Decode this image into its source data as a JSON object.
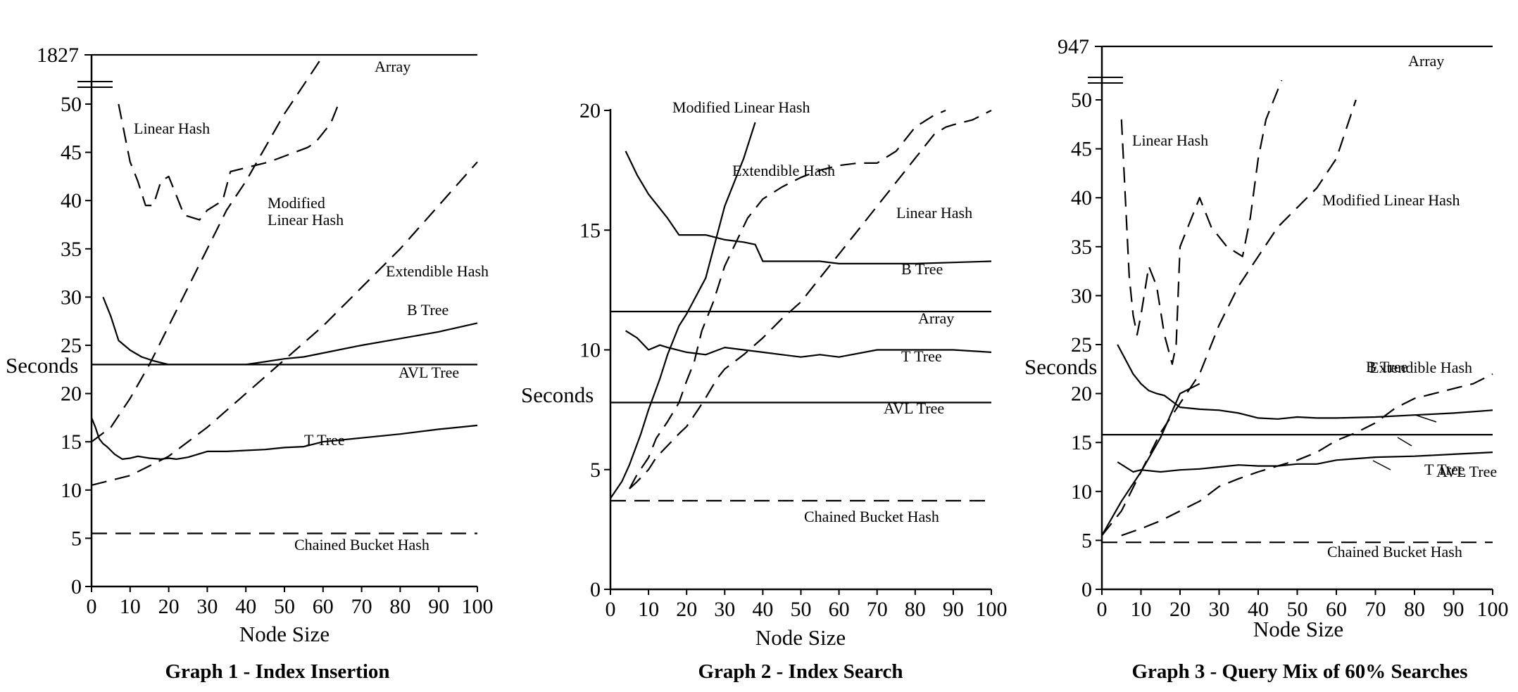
{
  "chart_data": [
    {
      "type": "line",
      "title": "Graph 1 - Index Insertion",
      "xlabel": "Node Size",
      "ylabel": "Seconds",
      "xlim": [
        0,
        100
      ],
      "ylim": [
        0,
        50
      ],
      "xticks": [
        "0",
        "10",
        "20",
        "30",
        "40",
        "50",
        "60",
        "70",
        "80",
        "90",
        "100"
      ],
      "yticks": [
        "0",
        "5",
        "10",
        "15",
        "20",
        "25",
        "30",
        "35",
        "40",
        "45",
        "50"
      ],
      "break_label": "1827",
      "grid": false,
      "series": [
        {
          "name": "Array",
          "style": "solid",
          "above_break": true,
          "break_value": 1827,
          "x": [
            0,
            100
          ]
        },
        {
          "name": "Linear Hash",
          "style": "dashed",
          "x": [
            7,
            9,
            10,
            12,
            14,
            16,
            18,
            20,
            22,
            24,
            28,
            30,
            34,
            36,
            46,
            56,
            58,
            62,
            64
          ],
          "y": [
            50,
            46,
            44,
            42,
            39.5,
            39.5,
            42,
            42.5,
            40.5,
            38.5,
            38,
            39,
            40,
            43,
            44,
            45.5,
            46,
            48,
            50
          ]
        },
        {
          "name": "Modified Linear Hash",
          "style": "dashed",
          "x": [
            0,
            5,
            10,
            15,
            20,
            25,
            30,
            35,
            40,
            45,
            50,
            55,
            60
          ],
          "y": [
            15,
            16.5,
            19.5,
            23,
            27,
            31,
            35,
            39,
            42,
            45.5,
            49,
            52,
            55
          ]
        },
        {
          "name": "Extendible Hash",
          "style": "dashed",
          "x": [
            0,
            10,
            20,
            30,
            40,
            50,
            60,
            70,
            80,
            90,
            100
          ],
          "y": [
            10.5,
            11.5,
            13.5,
            16.5,
            20,
            23.5,
            27,
            31,
            35,
            39.5,
            44
          ]
        },
        {
          "name": "B Tree",
          "style": "solid",
          "x": [
            3,
            5,
            7,
            10,
            13,
            16,
            20,
            25,
            30,
            35,
            40,
            45,
            50,
            55,
            60,
            70,
            80,
            90,
            100
          ],
          "y": [
            30,
            28,
            25.5,
            24.5,
            23.8,
            23.4,
            23,
            23,
            23,
            23,
            23,
            23.3,
            23.6,
            23.8,
            24.2,
            25,
            25.7,
            26.4,
            27.3
          ]
        },
        {
          "name": "AVL Tree",
          "style": "solid",
          "x": [
            0,
            100
          ],
          "y": [
            23,
            23
          ]
        },
        {
          "name": "T Tree",
          "style": "solid",
          "x": [
            0,
            1,
            2,
            3,
            4,
            6,
            8,
            10,
            12,
            15,
            18,
            20,
            22,
            25,
            30,
            35,
            40,
            45,
            50,
            55,
            60,
            70,
            80,
            90,
            100
          ],
          "y": [
            17.5,
            16.5,
            15.3,
            14.8,
            14.5,
            13.7,
            13.2,
            13.3,
            13.5,
            13.3,
            13.2,
            13.3,
            13.2,
            13.4,
            14,
            14,
            14.1,
            14.2,
            14.4,
            14.5,
            15,
            15.4,
            15.8,
            16.3,
            16.7
          ]
        },
        {
          "name": "Chained Bucket Hash",
          "style": "dashed",
          "x": [
            0,
            100
          ],
          "y": [
            5.5,
            5.5
          ]
        }
      ]
    },
    {
      "type": "line",
      "title": "Graph 2 - Index Search",
      "xlabel": "Node Size",
      "ylabel": "Seconds",
      "xlim": [
        0,
        100
      ],
      "ylim": [
        0,
        20
      ],
      "xticks": [
        "0",
        "10",
        "20",
        "30",
        "40",
        "50",
        "60",
        "70",
        "80",
        "90",
        "100"
      ],
      "yticks": [
        "0",
        "5",
        "10",
        "15",
        "20"
      ],
      "grid": false,
      "series": [
        {
          "name": "Modified Linear Hash",
          "style": "solid",
          "x": [
            0,
            3,
            5,
            8,
            10,
            13,
            15,
            18,
            20,
            25,
            30,
            35,
            38
          ],
          "y": [
            3.8,
            4.5,
            5.2,
            6.5,
            7.5,
            8.8,
            9.8,
            11,
            11.5,
            13,
            16,
            18,
            19.5
          ]
        },
        {
          "name": "Extendible Hash",
          "style": "dashed",
          "x": [
            5,
            7,
            10,
            12,
            15,
            18,
            20,
            22,
            24,
            27,
            30,
            33,
            36,
            40,
            45,
            50,
            55,
            60,
            65,
            70,
            75,
            80,
            85,
            88
          ],
          "y": [
            4.2,
            4.8,
            5.5,
            6.3,
            7,
            7.8,
            8.7,
            9.5,
            10.8,
            12,
            13.5,
            14.5,
            15.5,
            16.3,
            16.8,
            17.2,
            17.5,
            17.7,
            17.8,
            17.8,
            18.3,
            19.3,
            19.8,
            20
          ]
        },
        {
          "name": "Linear Hash",
          "style": "dashed",
          "x": [
            5,
            7,
            10,
            12,
            15,
            18,
            20,
            23,
            25,
            28,
            30,
            35,
            40,
            45,
            50,
            55,
            60,
            65,
            70,
            75,
            80,
            85,
            88,
            90,
            95,
            100
          ],
          "y": [
            4.2,
            4.5,
            5,
            5.5,
            6,
            6.5,
            6.8,
            7.5,
            8,
            8.8,
            9.2,
            9.8,
            10.5,
            11.3,
            12,
            13,
            14,
            15,
            16,
            17,
            18,
            19,
            19.3,
            19.4,
            19.6,
            20
          ]
        },
        {
          "name": "B Tree",
          "style": "solid",
          "x": [
            4,
            7,
            10,
            15,
            18,
            20,
            25,
            30,
            35,
            38,
            40,
            45,
            50,
            55,
            60,
            70,
            80,
            90,
            100
          ],
          "y": [
            18.3,
            17.3,
            16.5,
            15.5,
            14.8,
            14.8,
            14.8,
            14.6,
            14.5,
            14.4,
            13.7,
            13.7,
            13.7,
            13.7,
            13.6,
            13.6,
            13.6,
            13.65,
            13.7
          ]
        },
        {
          "name": "Array",
          "style": "solid",
          "x": [
            0,
            100
          ],
          "y": [
            11.6,
            11.6
          ]
        },
        {
          "name": "T Tree",
          "style": "solid",
          "x": [
            4,
            7,
            10,
            13,
            15,
            20,
            25,
            30,
            35,
            40,
            45,
            50,
            55,
            60,
            70,
            80,
            90,
            100
          ],
          "y": [
            10.8,
            10.5,
            10,
            10.2,
            10.1,
            9.9,
            9.8,
            10.1,
            10,
            9.9,
            9.8,
            9.7,
            9.8,
            9.7,
            10,
            10,
            10,
            9.9
          ]
        },
        {
          "name": "AVL Tree",
          "style": "solid",
          "x": [
            0,
            100
          ],
          "y": [
            7.8,
            7.8
          ]
        },
        {
          "name": "Chained Bucket Hash",
          "style": "dashed",
          "x": [
            0,
            100
          ],
          "y": [
            3.7,
            3.7
          ]
        }
      ]
    },
    {
      "type": "line",
      "title": "Graph 3 - Query Mix of 60% Searches",
      "xlabel": "Node Size",
      "ylabel": "Seconds",
      "xlim": [
        0,
        100
      ],
      "ylim": [
        0,
        50
      ],
      "xticks": [
        "0",
        "10",
        "20",
        "30",
        "40",
        "50",
        "60",
        "70",
        "80",
        "90",
        "100"
      ],
      "yticks": [
        "0",
        "5",
        "10",
        "15",
        "20",
        "25",
        "30",
        "35",
        "40",
        "45",
        "50"
      ],
      "break_label": "947",
      "grid": false,
      "series": [
        {
          "name": "Array",
          "style": "solid",
          "above_break": true,
          "break_value": 947,
          "x": [
            0,
            100
          ]
        },
        {
          "name": "Linear Hash",
          "style": "dashed",
          "x": [
            5,
            6,
            7,
            8,
            9,
            10,
            12,
            14,
            16,
            18,
            19,
            20,
            22,
            25,
            28,
            32,
            36,
            38,
            40,
            42,
            44,
            46
          ],
          "y": [
            48,
            40,
            32,
            28,
            26,
            28,
            33,
            31,
            26,
            23,
            25,
            35,
            37,
            40,
            37,
            35,
            34,
            38,
            44,
            48,
            50,
            52
          ]
        },
        {
          "name": "Modified Linear Hash",
          "style": "dashed",
          "x": [
            0,
            5,
            10,
            15,
            20,
            25,
            30,
            35,
            40,
            45,
            50,
            55,
            60,
            65
          ],
          "y": [
            5.5,
            8,
            12,
            16,
            19,
            22,
            27,
            31,
            34,
            37,
            39,
            41,
            44,
            50
          ]
        },
        {
          "name": "Extendible Hash",
          "style": "solid",
          "x": [
            0,
            5,
            10,
            15,
            20,
            25
          ],
          "y": [
            5.5,
            9,
            12,
            15.5,
            20,
            21
          ]
        },
        {
          "name": "Extendible Hash",
          "style": "dashed",
          "x": [
            5,
            10,
            15,
            20,
            25,
            30,
            35,
            40,
            45,
            50,
            55,
            60,
            65,
            70,
            75,
            80,
            85,
            90,
            95,
            100
          ],
          "y": [
            5.5,
            6.2,
            7,
            8,
            9,
            10.5,
            11.3,
            12,
            12.6,
            13.2,
            14,
            15.2,
            16,
            17,
            18.5,
            19.5,
            20,
            20.5,
            21,
            22
          ]
        },
        {
          "name": "B Tree",
          "style": "solid",
          "x": [
            4,
            6,
            8,
            10,
            12,
            14,
            16,
            18,
            20,
            25,
            30,
            35,
            40,
            45,
            50,
            55,
            60,
            70,
            80,
            90,
            100
          ],
          "y": [
            25,
            23.5,
            22,
            21,
            20.3,
            20,
            19.8,
            19.2,
            18.6,
            18.4,
            18.3,
            18,
            17.5,
            17.4,
            17.6,
            17.5,
            17.5,
            17.6,
            17.8,
            18,
            18.3
          ]
        },
        {
          "name": "AVL Tree",
          "style": "solid",
          "x": [
            0,
            100
          ],
          "y": [
            15.8,
            15.8
          ]
        },
        {
          "name": "T Tree",
          "style": "solid",
          "x": [
            4,
            6,
            8,
            10,
            15,
            20,
            25,
            30,
            35,
            40,
            45,
            50,
            55,
            60,
            70,
            80,
            90,
            100
          ],
          "y": [
            13,
            12.5,
            12,
            12.2,
            12,
            12.2,
            12.3,
            12.5,
            12.7,
            12.6,
            12.6,
            12.8,
            12.8,
            13.2,
            13.5,
            13.6,
            13.8,
            14
          ]
        },
        {
          "name": "Chained Bucket Hash",
          "style": "dashed",
          "x": [
            0,
            100
          ],
          "y": [
            4.8,
            4.8
          ]
        }
      ]
    }
  ]
}
